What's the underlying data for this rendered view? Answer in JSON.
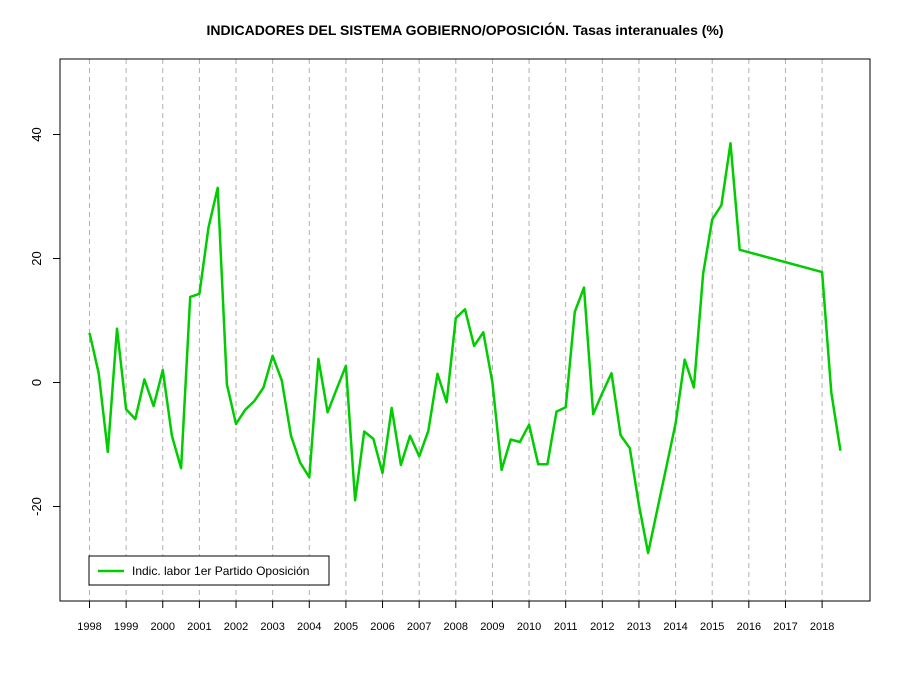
{
  "chart_data": {
    "type": "line",
    "title": "INDICADORES DEL SISTEMA GOBIERNO/OPOSICIÓN. Tasas interanuales (%)",
    "xlabel": "",
    "ylabel": "",
    "xlim": [
      1998,
      2018.5
    ],
    "ylim": [
      -35,
      52
    ],
    "x_ticks": [
      "1998",
      "1999",
      "2000",
      "2001",
      "2002",
      "2003",
      "2004",
      "2005",
      "2006",
      "2007",
      "2008",
      "2009",
      "2010",
      "2011",
      "2012",
      "2013",
      "2014",
      "2015",
      "2016",
      "2017",
      "2018"
    ],
    "y_ticks": [
      -20,
      0,
      20,
      40
    ],
    "grid": "vertical dashed at year ticks",
    "legend_position": "bottom-left",
    "color": "#00cc00",
    "series": [
      {
        "name": "Indic. labor 1er Partido Oposición",
        "x": [
          1998.0,
          1998.25,
          1998.5,
          1998.75,
          1999.0,
          1999.25,
          1999.5,
          1999.75,
          2000.0,
          2000.25,
          2000.5,
          2000.75,
          2001.0,
          2001.25,
          2001.5,
          2001.75,
          2002.0,
          2002.25,
          2002.5,
          2002.75,
          2003.0,
          2003.25,
          2003.5,
          2003.75,
          2004.0,
          2004.25,
          2004.5,
          2004.75,
          2005.0,
          2005.25,
          2005.5,
          2005.75,
          2006.0,
          2006.25,
          2006.5,
          2006.75,
          2007.0,
          2007.25,
          2007.5,
          2007.75,
          2008.0,
          2008.25,
          2008.5,
          2008.75,
          2009.0,
          2009.25,
          2009.5,
          2009.75,
          2010.0,
          2010.25,
          2010.5,
          2010.75,
          2011.0,
          2011.25,
          2011.5,
          2011.75,
          2012.0,
          2012.25,
          2012.5,
          2012.75,
          2013.0,
          2013.25,
          2013.5,
          2013.75,
          2014.0,
          2014.25,
          2014.5,
          2014.75,
          2015.0,
          2015.25,
          2015.5,
          2015.75,
          2018.0,
          2018.25,
          2018.5
        ],
        "values": [
          8.0,
          1.5,
          -11.2,
          8.7,
          -4.3,
          -5.9,
          0.5,
          -3.8,
          2.0,
          -8.6,
          -13.8,
          13.8,
          14.3,
          25.0,
          31.4,
          -0.3,
          -6.7,
          -4.4,
          -3.0,
          -0.8,
          4.3,
          0.3,
          -8.6,
          -12.9,
          -15.3,
          3.8,
          -4.8,
          -1.0,
          2.7,
          -19.0,
          -7.9,
          -9.1,
          -14.6,
          -4.1,
          -13.3,
          -8.6,
          -11.9,
          -7.8,
          1.4,
          -3.2,
          10.4,
          11.8,
          5.9,
          8.1,
          0.0,
          -14.1,
          -9.2,
          -9.6,
          -6.8,
          -13.2,
          -13.2,
          -4.7,
          -4.0,
          11.4,
          15.3,
          -5.1,
          -1.7,
          1.5,
          -8.5,
          -10.6,
          -19.8,
          -27.5,
          -20.5,
          -13.6,
          -6.6,
          3.7,
          -0.8,
          17.5,
          26.3,
          28.6,
          38.6,
          21.4,
          17.8,
          -1.6,
          -11.0
        ]
      }
    ]
  }
}
